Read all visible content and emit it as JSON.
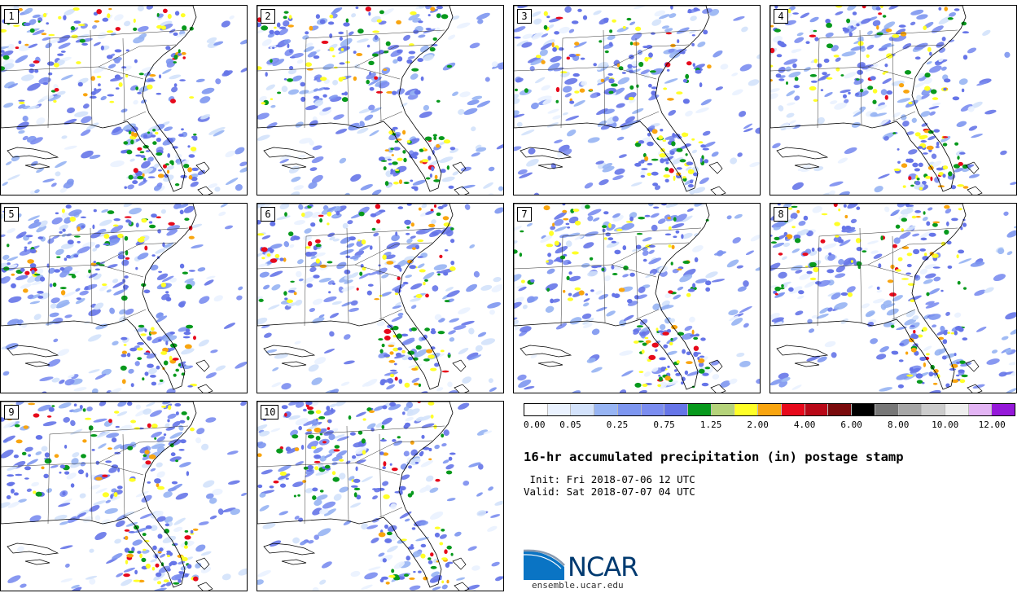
{
  "panels": [
    {
      "label": "1"
    },
    {
      "label": "2"
    },
    {
      "label": "3"
    },
    {
      "label": "4"
    },
    {
      "label": "5"
    },
    {
      "label": "6"
    },
    {
      "label": "7"
    },
    {
      "label": "8"
    },
    {
      "label": "9"
    },
    {
      "label": "10"
    }
  ],
  "colorbar": {
    "colors": [
      "#ffffff",
      "#eaf2ff",
      "#d3e2fb",
      "#97b4f3",
      "#7d96f0",
      "#7b8df0",
      "#6675e8",
      "#07991c",
      "#b5d37a",
      "#ffff27",
      "#f9a50f",
      "#e7091b",
      "#b80817",
      "#7a0a0c",
      "#000000",
      "#777777",
      "#a6a6a6",
      "#cccccc",
      "#eeeeee",
      "#e3b4f4",
      "#9518d9"
    ],
    "tick_labels": [
      "0.00",
      "0.05",
      "0.25",
      "0.75",
      "1.25",
      "2.00",
      "4.00",
      "6.00",
      "8.00",
      "10.00",
      "12.00"
    ]
  },
  "title": "16-hr accumulated precipitation (in) postage stamp",
  "init": " Init: Fri 2018-07-06 12 UTC",
  "valid": "Valid: Sat 2018-07-07 04 UTC",
  "logo": {
    "text": "NCAR",
    "url": "ensemble.ucar.edu",
    "colors": {
      "blue": "#0a74c4",
      "navy": "#003a70",
      "gray": "#8a9bb0"
    }
  }
}
